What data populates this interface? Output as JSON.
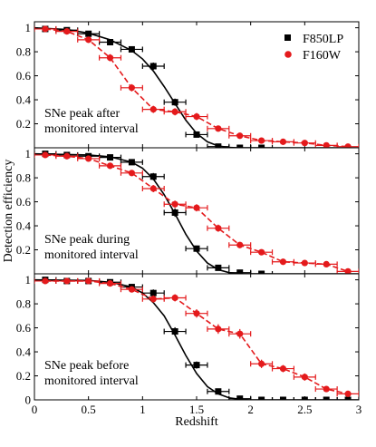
{
  "chart_data": {
    "type": "scatter",
    "xlabel": "Redshift",
    "ylabel": "Detection efficiency",
    "xlim": [
      0,
      3
    ],
    "ylim": [
      0,
      1.05
    ],
    "x_ticks": [
      0,
      0.5,
      1,
      1.5,
      2,
      2.5,
      3
    ],
    "x_tick_labels": [
      "0",
      "0.5",
      "1",
      "1.5",
      "2",
      "2.5",
      "3"
    ],
    "y_ticks": [
      0,
      0.2,
      0.4,
      0.6,
      0.8,
      1
    ],
    "y_tick_labels_top": [
      "1",
      "0.8",
      "0.6",
      "0.4",
      "0.2"
    ],
    "y_tick_labels_mid": [
      "1",
      "0.8",
      "0.6",
      "0.4",
      "0.2"
    ],
    "y_tick_labels_bottom": [
      "1",
      "0.8",
      "0.6",
      "0.4",
      "0.2",
      "0"
    ],
    "legend": {
      "placement": "top-right",
      "entries": [
        {
          "name": "F850LP",
          "color": "#000000",
          "marker": "square",
          "line": "solid"
        },
        {
          "name": "F160W",
          "color": "#e41a1c",
          "marker": "circle",
          "line": "dashed"
        }
      ]
    },
    "panels": [
      {
        "annotation": [
          "SNe peak after",
          "monitored interval"
        ],
        "series": [
          {
            "name": "F850LP",
            "points": [
              {
                "x": 0.1,
                "y": 0.99,
                "yerr": 0.01
              },
              {
                "x": 0.3,
                "y": 0.98,
                "yerr": 0.01
              },
              {
                "x": 0.5,
                "y": 0.95,
                "yerr": 0.015
              },
              {
                "x": 0.7,
                "y": 0.88,
                "yerr": 0.02
              },
              {
                "x": 0.9,
                "y": 0.82,
                "yerr": 0.02
              },
              {
                "x": 1.1,
                "y": 0.68,
                "yerr": 0.03
              },
              {
                "x": 1.3,
                "y": 0.38,
                "yerr": 0.03
              },
              {
                "x": 1.5,
                "y": 0.11,
                "yerr": 0.02
              },
              {
                "x": 1.7,
                "y": 0.01,
                "yerr": 0.01
              },
              {
                "x": 1.9,
                "y": 0.0,
                "yerr": 0.005
              },
              {
                "x": 2.1,
                "y": 0.0,
                "yerr": 0.005
              }
            ],
            "curve": [
              [
                0,
                1.0
              ],
              [
                0.3,
                0.985
              ],
              [
                0.5,
                0.955
              ],
              [
                0.7,
                0.9
              ],
              [
                0.9,
                0.81
              ],
              [
                1.0,
                0.74
              ],
              [
                1.1,
                0.64
              ],
              [
                1.2,
                0.51
              ],
              [
                1.3,
                0.37
              ],
              [
                1.4,
                0.23
              ],
              [
                1.5,
                0.12
              ],
              [
                1.6,
                0.05
              ],
              [
                1.7,
                0.015
              ],
              [
                1.8,
                0.003
              ],
              [
                1.9,
                0.0
              ],
              [
                3.0,
                0.0
              ]
            ]
          },
          {
            "name": "F160W",
            "points": [
              {
                "x": 0.1,
                "y": 0.99,
                "yerr": 0.01
              },
              {
                "x": 0.3,
                "y": 0.97,
                "yerr": 0.015
              },
              {
                "x": 0.5,
                "y": 0.9,
                "yerr": 0.02
              },
              {
                "x": 0.7,
                "y": 0.75,
                "yerr": 0.03
              },
              {
                "x": 0.9,
                "y": 0.5,
                "yerr": 0.03
              },
              {
                "x": 1.1,
                "y": 0.32,
                "yerr": 0.03
              },
              {
                "x": 1.3,
                "y": 0.3,
                "yerr": 0.03
              },
              {
                "x": 1.5,
                "y": 0.26,
                "yerr": 0.03
              },
              {
                "x": 1.7,
                "y": 0.16,
                "yerr": 0.025
              },
              {
                "x": 1.9,
                "y": 0.1,
                "yerr": 0.02
              },
              {
                "x": 2.1,
                "y": 0.06,
                "yerr": 0.015
              },
              {
                "x": 2.3,
                "y": 0.05,
                "yerr": 0.015
              },
              {
                "x": 2.5,
                "y": 0.04,
                "yerr": 0.012
              },
              {
                "x": 2.7,
                "y": 0.02,
                "yerr": 0.01
              },
              {
                "x": 2.9,
                "y": 0.01,
                "yerr": 0.01
              }
            ]
          }
        ]
      },
      {
        "annotation": [
          "SNe peak during",
          "monitored interval"
        ],
        "series": [
          {
            "name": "F850LP",
            "points": [
              {
                "x": 0.1,
                "y": 1.0,
                "yerr": 0.01
              },
              {
                "x": 0.3,
                "y": 0.99,
                "yerr": 0.01
              },
              {
                "x": 0.5,
                "y": 0.98,
                "yerr": 0.012
              },
              {
                "x": 0.7,
                "y": 0.97,
                "yerr": 0.015
              },
              {
                "x": 0.9,
                "y": 0.93,
                "yerr": 0.02
              },
              {
                "x": 1.1,
                "y": 0.81,
                "yerr": 0.03
              },
              {
                "x": 1.3,
                "y": 0.51,
                "yerr": 0.035
              },
              {
                "x": 1.5,
                "y": 0.21,
                "yerr": 0.025
              },
              {
                "x": 1.7,
                "y": 0.05,
                "yerr": 0.015
              },
              {
                "x": 1.9,
                "y": 0.01,
                "yerr": 0.005
              },
              {
                "x": 2.1,
                "y": 0.0,
                "yerr": 0.005
              }
            ],
            "curve": [
              [
                0,
                1.0
              ],
              [
                0.5,
                0.99
              ],
              [
                0.7,
                0.975
              ],
              [
                0.9,
                0.93
              ],
              [
                1.0,
                0.88
              ],
              [
                1.1,
                0.79
              ],
              [
                1.2,
                0.66
              ],
              [
                1.3,
                0.5
              ],
              [
                1.4,
                0.33
              ],
              [
                1.5,
                0.19
              ],
              [
                1.6,
                0.09
              ],
              [
                1.7,
                0.035
              ],
              [
                1.8,
                0.01
              ],
              [
                1.9,
                0.002
              ],
              [
                2.0,
                0.0
              ],
              [
                3.0,
                0.0
              ]
            ]
          },
          {
            "name": "F160W",
            "points": [
              {
                "x": 0.1,
                "y": 0.99,
                "yerr": 0.01
              },
              {
                "x": 0.3,
                "y": 0.98,
                "yerr": 0.012
              },
              {
                "x": 0.5,
                "y": 0.96,
                "yerr": 0.015
              },
              {
                "x": 0.7,
                "y": 0.9,
                "yerr": 0.02
              },
              {
                "x": 0.9,
                "y": 0.84,
                "yerr": 0.025
              },
              {
                "x": 1.1,
                "y": 0.71,
                "yerr": 0.03
              },
              {
                "x": 1.3,
                "y": 0.58,
                "yerr": 0.03
              },
              {
                "x": 1.5,
                "y": 0.55,
                "yerr": 0.03
              },
              {
                "x": 1.7,
                "y": 0.38,
                "yerr": 0.03
              },
              {
                "x": 1.9,
                "y": 0.24,
                "yerr": 0.025
              },
              {
                "x": 2.1,
                "y": 0.18,
                "yerr": 0.02
              },
              {
                "x": 2.3,
                "y": 0.1,
                "yerr": 0.015
              },
              {
                "x": 2.5,
                "y": 0.09,
                "yerr": 0.015
              },
              {
                "x": 2.7,
                "y": 0.08,
                "yerr": 0.012
              },
              {
                "x": 2.9,
                "y": 0.02,
                "yerr": 0.01
              }
            ]
          }
        ]
      },
      {
        "annotation": [
          "SNe peak before",
          "monitored interval"
        ],
        "series": [
          {
            "name": "F850LP",
            "points": [
              {
                "x": 0.1,
                "y": 1.0,
                "yerr": 0.01
              },
              {
                "x": 0.3,
                "y": 0.99,
                "yerr": 0.01
              },
              {
                "x": 0.5,
                "y": 0.99,
                "yerr": 0.01
              },
              {
                "x": 0.7,
                "y": 0.98,
                "yerr": 0.012
              },
              {
                "x": 0.9,
                "y": 0.94,
                "yerr": 0.02
              },
              {
                "x": 1.1,
                "y": 0.89,
                "yerr": 0.03
              },
              {
                "x": 1.3,
                "y": 0.57,
                "yerr": 0.035
              },
              {
                "x": 1.5,
                "y": 0.29,
                "yerr": 0.03
              },
              {
                "x": 1.7,
                "y": 0.07,
                "yerr": 0.02
              },
              {
                "x": 1.9,
                "y": 0.01,
                "yerr": 0.01
              },
              {
                "x": 2.1,
                "y": 0.0,
                "yerr": 0.005
              },
              {
                "x": 2.3,
                "y": 0.0,
                "yerr": 0.005
              },
              {
                "x": 2.5,
                "y": 0.0,
                "yerr": 0.005
              },
              {
                "x": 2.7,
                "y": 0.0,
                "yerr": 0.005
              },
              {
                "x": 2.9,
                "y": 0.0,
                "yerr": 0.005
              }
            ],
            "curve": [
              [
                0,
                1.0
              ],
              [
                0.5,
                0.995
              ],
              [
                0.7,
                0.98
              ],
              [
                0.9,
                0.94
              ],
              [
                1.0,
                0.89
              ],
              [
                1.1,
                0.81
              ],
              [
                1.2,
                0.7
              ],
              [
                1.3,
                0.54
              ],
              [
                1.4,
                0.37
              ],
              [
                1.5,
                0.22
              ],
              [
                1.6,
                0.11
              ],
              [
                1.7,
                0.05
              ],
              [
                1.8,
                0.017
              ],
              [
                1.9,
                0.005
              ],
              [
                2.0,
                0.0
              ],
              [
                3.0,
                0.0
              ]
            ]
          },
          {
            "name": "F160W",
            "points": [
              {
                "x": 0.1,
                "y": 0.99,
                "yerr": 0.01
              },
              {
                "x": 0.3,
                "y": 0.99,
                "yerr": 0.01
              },
              {
                "x": 0.5,
                "y": 0.99,
                "yerr": 0.012
              },
              {
                "x": 0.7,
                "y": 0.97,
                "yerr": 0.015
              },
              {
                "x": 0.9,
                "y": 0.92,
                "yerr": 0.025
              },
              {
                "x": 1.1,
                "y": 0.84,
                "yerr": 0.03
              },
              {
                "x": 1.3,
                "y": 0.85,
                "yerr": 0.03
              },
              {
                "x": 1.5,
                "y": 0.72,
                "yerr": 0.035
              },
              {
                "x": 1.7,
                "y": 0.59,
                "yerr": 0.04
              },
              {
                "x": 1.9,
                "y": 0.55,
                "yerr": 0.04
              },
              {
                "x": 2.1,
                "y": 0.3,
                "yerr": 0.035
              },
              {
                "x": 2.3,
                "y": 0.26,
                "yerr": 0.03
              },
              {
                "x": 2.5,
                "y": 0.19,
                "yerr": 0.03
              },
              {
                "x": 2.7,
                "y": 0.09,
                "yerr": 0.025
              },
              {
                "x": 2.9,
                "y": 0.05,
                "yerr": 0.02
              }
            ]
          }
        ]
      }
    ]
  },
  "colors": {
    "f850lp": "#000000",
    "f160w": "#e41a1c"
  }
}
